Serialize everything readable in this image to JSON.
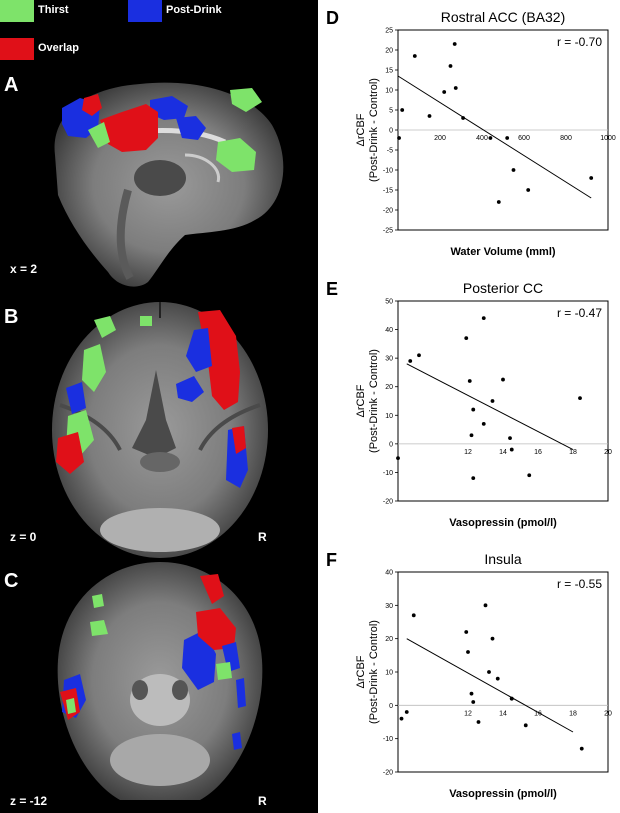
{
  "legend": [
    {
      "label": "Thirst",
      "color": "#7ee36a"
    },
    {
      "label": "Post-Drink",
      "color": "#1a2fe0"
    },
    {
      "label": "Overlap",
      "color": "#e01018"
    }
  ],
  "brain_panels": [
    {
      "letter": "A",
      "slice_label": "x = 2",
      "orientation_label": ""
    },
    {
      "letter": "B",
      "slice_label": "z = 0",
      "orientation_label": "R"
    },
    {
      "letter": "C",
      "slice_label": "z = -12",
      "orientation_label": "R"
    }
  ],
  "chart_data": [
    {
      "type": "scatter",
      "panel": "D",
      "title": "Rostral ACC (BA32)",
      "xlabel": "Water Volume (mml)",
      "ylabel": "ΔrCBF\n(Post-Drink - Control)",
      "annotation": "r = -0.70",
      "xlim": [
        0,
        1000
      ],
      "ylim": [
        -25,
        25
      ],
      "xticks": [
        200,
        400,
        600,
        800,
        1000
      ],
      "yticks": [
        25,
        20,
        15,
        10,
        5,
        0,
        -5,
        -10,
        -15,
        -20,
        -25
      ],
      "points": [
        [
          5,
          -2
        ],
        [
          20,
          5
        ],
        [
          80,
          18.5
        ],
        [
          150,
          3.5
        ],
        [
          220,
          9.5
        ],
        [
          250,
          16
        ],
        [
          270,
          21.5
        ],
        [
          275,
          10.5
        ],
        [
          310,
          3
        ],
        [
          440,
          -2
        ],
        [
          480,
          -18
        ],
        [
          520,
          -2
        ],
        [
          550,
          -10
        ],
        [
          620,
          -15
        ],
        [
          920,
          -12
        ]
      ],
      "fit": [
        [
          0,
          13.5
        ],
        [
          920,
          -17
        ]
      ]
    },
    {
      "type": "scatter",
      "panel": "E",
      "title": "Posterior CC",
      "xlabel": "Vasopressin (pmol/l)",
      "ylabel": "ΔrCBF\n(Post-Drink - Control)",
      "annotation": "r = -0.47",
      "xlim": [
        8,
        20
      ],
      "ylim": [
        -20,
        50
      ],
      "xticks": [
        12,
        14,
        16,
        18,
        20
      ],
      "yticks": [
        50,
        40,
        30,
        20,
        10,
        0,
        -10,
        -20
      ],
      "points": [
        [
          8,
          -5
        ],
        [
          8.7,
          29
        ],
        [
          9.2,
          31
        ],
        [
          11.9,
          37
        ],
        [
          12.1,
          22
        ],
        [
          12.2,
          3
        ],
        [
          12.3,
          -12
        ],
        [
          12.3,
          12
        ],
        [
          12.9,
          44
        ],
        [
          12.9,
          7
        ],
        [
          13.4,
          15
        ],
        [
          14,
          22.5
        ],
        [
          14.4,
          2
        ],
        [
          14.5,
          -2
        ],
        [
          15.5,
          -11
        ],
        [
          18.4,
          16
        ]
      ],
      "fit": [
        [
          8.5,
          28
        ],
        [
          18,
          -2
        ]
      ]
    },
    {
      "type": "scatter",
      "panel": "F",
      "title": "Insula",
      "xlabel": "Vasopressin (pmol/l)",
      "ylabel": "ΔrCBF\n(Post-Drink - Control)",
      "annotation": "r = -0.55",
      "xlim": [
        8,
        20
      ],
      "ylim": [
        -20,
        40
      ],
      "xticks": [
        12,
        14,
        16,
        18,
        20
      ],
      "yticks": [
        40,
        30,
        20,
        10,
        0,
        -10,
        -20
      ],
      "points": [
        [
          8.2,
          -4
        ],
        [
          8.5,
          -2
        ],
        [
          8.9,
          27
        ],
        [
          11.9,
          22
        ],
        [
          12,
          16
        ],
        [
          12.2,
          3.5
        ],
        [
          12.3,
          1
        ],
        [
          12.6,
          -5
        ],
        [
          13,
          30
        ],
        [
          13.2,
          10
        ],
        [
          13.4,
          20
        ],
        [
          13.7,
          8
        ],
        [
          14.5,
          2
        ],
        [
          14.5,
          2
        ],
        [
          15.3,
          -6
        ],
        [
          18.5,
          -13
        ]
      ],
      "fit": [
        [
          8.5,
          20
        ],
        [
          18,
          -8
        ]
      ]
    }
  ]
}
